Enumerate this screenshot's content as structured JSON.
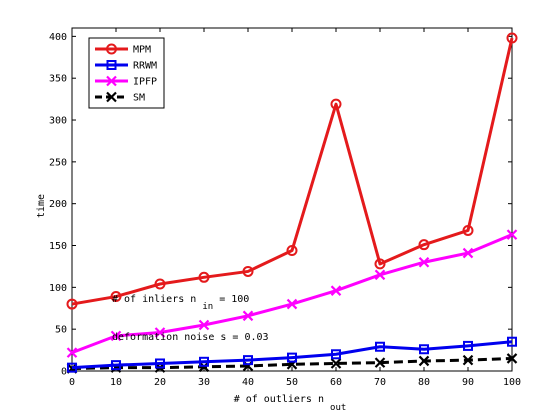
{
  "chart_data": {
    "type": "line",
    "xlabel": "# of outliers n",
    "xlabel_sub": "out",
    "ylabel": "time",
    "x": [
      0,
      10,
      20,
      30,
      40,
      50,
      60,
      70,
      80,
      90,
      100
    ],
    "xlim": [
      0,
      100
    ],
    "ylim": [
      0,
      410
    ],
    "xticks": [
      0,
      10,
      20,
      30,
      40,
      50,
      60,
      70,
      80,
      90,
      100
    ],
    "yticks": [
      0,
      50,
      100,
      150,
      200,
      250,
      300,
      350,
      400
    ],
    "legend_position": "top-left",
    "grid": false,
    "series": [
      {
        "name": "MPM",
        "color": "#e41a1c",
        "marker": "circle",
        "dash": false,
        "values": [
          80,
          89,
          104,
          112,
          119,
          144,
          319,
          128,
          151,
          168,
          398
        ]
      },
      {
        "name": "RRWM",
        "color": "#0000ee",
        "marker": "square",
        "dash": false,
        "values": [
          4,
          7,
          9,
          11,
          13,
          16,
          20,
          29,
          26,
          30,
          35
        ]
      },
      {
        "name": "IPFP",
        "color": "#ff00ff",
        "marker": "x",
        "dash": false,
        "values": [
          22,
          42,
          46,
          55,
          66,
          80,
          96,
          115,
          130,
          141,
          163
        ]
      },
      {
        "name": "SM",
        "color": "#000000",
        "marker": "x",
        "dash": true,
        "values": [
          3,
          4,
          4,
          5,
          6,
          8,
          9,
          10,
          12,
          13,
          15
        ]
      }
    ],
    "annotations": [
      {
        "text_a": "# of inliers n",
        "sub": "in",
        "text_b": " = 100"
      },
      {
        "text_a": "deformation noise s = 0.03",
        "sub": "",
        "text_b": ""
      }
    ]
  }
}
